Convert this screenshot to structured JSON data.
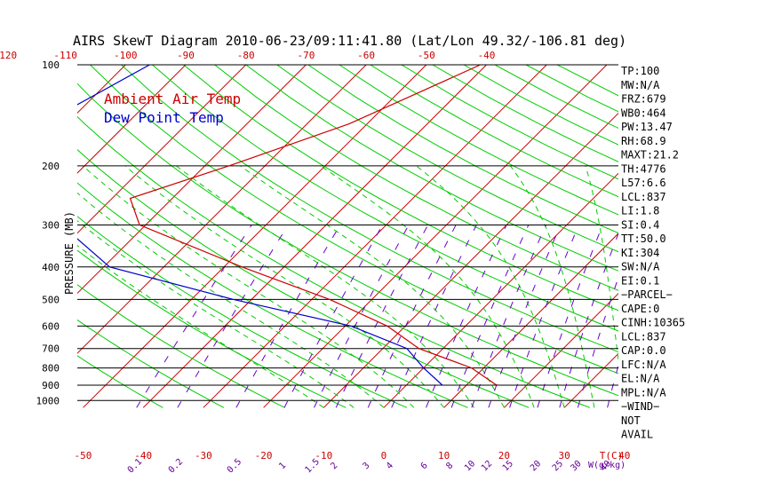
{
  "title": "AIRS SkewT Diagram 2010-06-23/09:11:41.80 (Lat/Lon 49.32/-106.81 deg)",
  "legend": {
    "temp_label": "Ambient Air Temp",
    "dew_label": "Dew Point Temp",
    "temp_color": "#cc0000",
    "dew_color": "#0000cc"
  },
  "colors": {
    "isotherm": "#cc0000",
    "dry_adiabat": "#00cc00",
    "moist_adiabat": "#00cc00",
    "mixing_ratio": "#6600cc",
    "isobar": "#000000"
  },
  "y_axis_label": "PRESSURE (MB)",
  "t_axis_label": "T(C)",
  "w_axis_label": "W(g/kg)",
  "pressure_labels": [
    "100",
    "200",
    "300",
    "400",
    "500",
    "600",
    "700",
    "800",
    "900",
    "1000"
  ],
  "top_temp_labels": [
    "-120",
    "-110",
    "-100",
    "-90",
    "-80",
    "-70",
    "-60",
    "-50",
    "-40"
  ],
  "bottom_temp_labels": [
    "-50",
    "-40",
    "-30",
    "-20",
    "-10",
    "0",
    "10",
    "20",
    "30",
    "40"
  ],
  "mixing_ratio_labels": [
    "0.1",
    "0.2",
    "0.5",
    "1",
    "1.5",
    "2",
    "3",
    "4",
    "6",
    "8",
    "10",
    "12",
    "15",
    "20",
    "25",
    "30",
    "40"
  ],
  "indices": [
    "TP:100",
    "MW:N/A",
    "FRZ:679",
    "WB0:464",
    "PW:13.47",
    "RH:68.9",
    "MAXT:21.2",
    "TH:4776",
    "L57:6.6",
    "LCL:837",
    "LI:1.8",
    "SI:0.4",
    "TT:50.0",
    "KI:304",
    "SW:N/A",
    "EI:0.1",
    "−PARCEL−",
    "CAPE:0",
    "CINH:10365",
    "LCL:837",
    "CAP:0.0",
    "LFC:N/A",
    "EL:N/A",
    "MPL:N/A",
    "−WIND−",
    "NOT",
    "AVAIL"
  ],
  "chart_data": {
    "type": "line",
    "title": "AIRS SkewT Diagram 2010-06-23/09:11:41.80 (Lat/Lon 49.32/-106.81 deg)",
    "xlabel": "T(C)",
    "ylabel": "PRESSURE (MB)",
    "y_scale": "log",
    "ylim": [
      1050,
      100
    ],
    "x_bottom_range": [
      -52,
      46
    ],
    "skew_deg": 45,
    "isobars": [
      100,
      200,
      300,
      400,
      500,
      600,
      700,
      800,
      900,
      1000
    ],
    "series": [
      {
        "name": "Ambient Air Temp",
        "pressure": [
          100,
          150,
          200,
          250,
          300,
          400,
          500,
          600,
          700,
          800,
          900
        ],
        "temperature": [
          -41,
          -53,
          -66,
          -77,
          -71,
          -47,
          -27,
          -13,
          -4,
          8,
          15
        ]
      },
      {
        "name": "Dew Point Temp",
        "pressure": [
          100,
          150,
          200,
          250,
          300,
          400,
          500,
          600,
          700,
          800,
          900
        ],
        "temperature": [
          -96,
          -104,
          -96,
          -89,
          -84,
          -69,
          -43,
          -19,
          -6,
          0,
          6
        ]
      }
    ]
  }
}
